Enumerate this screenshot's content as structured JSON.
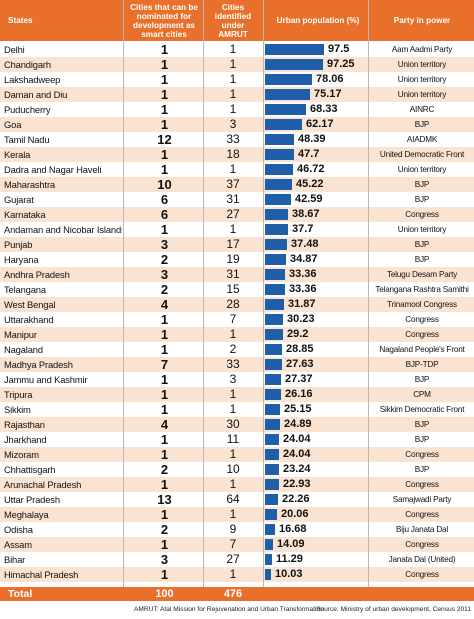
{
  "chart_data": {
    "type": "table",
    "headers": {
      "state": "States",
      "smart_cities": "Cities that can be nominated for development as smart cities",
      "amrut": "Cities identified under AMRUT",
      "urban_pop": "Urban population (%)",
      "party": "Party in power"
    },
    "rows": [
      {
        "state": "Delhi",
        "smart": "1",
        "amrut": "1",
        "urban": 97.5,
        "urban_label": "97.5",
        "party": "Aam Aadmi Party"
      },
      {
        "state": "Chandigarh",
        "smart": "1",
        "amrut": "1",
        "urban": 97.25,
        "urban_label": "97.25",
        "party": "Union territory"
      },
      {
        "state": "Lakshadweep",
        "smart": "1",
        "amrut": "1",
        "urban": 78.06,
        "urban_label": "78.06",
        "party": "Union territory"
      },
      {
        "state": "Daman and Diu",
        "smart": "1",
        "amrut": "1",
        "urban": 75.17,
        "urban_label": "75.17",
        "party": "Union territory"
      },
      {
        "state": "Puducherry",
        "smart": "1",
        "amrut": "1",
        "urban": 68.33,
        "urban_label": "68.33",
        "party": "AINRC"
      },
      {
        "state": "Goa",
        "smart": "1",
        "amrut": "3",
        "urban": 62.17,
        "urban_label": "62.17",
        "party": "BJP"
      },
      {
        "state": "Tamil Nadu",
        "smart": "12",
        "amrut": "33",
        "urban": 48.39,
        "urban_label": "48.39",
        "party": "AIADMK"
      },
      {
        "state": "Kerala",
        "smart": "1",
        "amrut": "18",
        "urban": 47.7,
        "urban_label": "47.7",
        "party": "United Democratic Front"
      },
      {
        "state": "Dadra and Nagar Haveli",
        "smart": "1",
        "amrut": "1",
        "urban": 46.72,
        "urban_label": "46.72",
        "party": "Union territory"
      },
      {
        "state": "Maharashtra",
        "smart": "10",
        "amrut": "37",
        "urban": 45.22,
        "urban_label": "45.22",
        "party": "BJP"
      },
      {
        "state": "Gujarat",
        "smart": "6",
        "amrut": "31",
        "urban": 42.59,
        "urban_label": "42.59",
        "party": "BJP"
      },
      {
        "state": "Karnataka",
        "smart": "6",
        "amrut": "27",
        "urban": 38.67,
        "urban_label": "38.67",
        "party": "Congress"
      },
      {
        "state": "Andaman and Nicobar Islands",
        "smart": "1",
        "amrut": "1",
        "urban": 37.7,
        "urban_label": "37.7",
        "party": "Union territory"
      },
      {
        "state": "Punjab",
        "smart": "3",
        "amrut": "17",
        "urban": 37.48,
        "urban_label": "37.48",
        "party": "BJP"
      },
      {
        "state": "Haryana",
        "smart": "2",
        "amrut": "19",
        "urban": 34.87,
        "urban_label": "34.87",
        "party": "BJP"
      },
      {
        "state": "Andhra Pradesh",
        "smart": "3",
        "amrut": "31",
        "urban": 33.36,
        "urban_label": "33.36",
        "party": "Telugu Desam Party"
      },
      {
        "state": "Telangana",
        "smart": "2",
        "amrut": "15",
        "urban": 33.36,
        "urban_label": "33.36",
        "party": "Telangana Rashtra Samithi"
      },
      {
        "state": "West Bengal",
        "smart": "4",
        "amrut": "28",
        "urban": 31.87,
        "urban_label": "31.87",
        "party": "Trinamool Congress"
      },
      {
        "state": "Uttarakhand",
        "smart": "1",
        "amrut": "7",
        "urban": 30.23,
        "urban_label": "30.23",
        "party": "Congress"
      },
      {
        "state": "Manipur",
        "smart": "1",
        "amrut": "1",
        "urban": 29.2,
        "urban_label": "29.2",
        "party": "Congress"
      },
      {
        "state": "Nagaland",
        "smart": "1",
        "amrut": "2",
        "urban": 28.85,
        "urban_label": "28.85",
        "party": "Nagaland People's Front"
      },
      {
        "state": "Madhya Pradesh",
        "smart": "7",
        "amrut": "33",
        "urban": 27.63,
        "urban_label": "27.63",
        "party": "BJP-TDP"
      },
      {
        "state": "Jammu and Kashmir",
        "smart": "1",
        "amrut": "3",
        "urban": 27.37,
        "urban_label": "27.37",
        "party": "BJP"
      },
      {
        "state": "Tripura",
        "smart": "1",
        "amrut": "1",
        "urban": 26.16,
        "urban_label": "26.16",
        "party": "CPM"
      },
      {
        "state": "Sikkim",
        "smart": "1",
        "amrut": "1",
        "urban": 25.15,
        "urban_label": "25.15",
        "party": "Sikkim Democratic Front"
      },
      {
        "state": "Rajasthan",
        "smart": "4",
        "amrut": "30",
        "urban": 24.89,
        "urban_label": "24.89",
        "party": "BJP"
      },
      {
        "state": "Jharkhand",
        "smart": "1",
        "amrut": "11",
        "urban": 24.04,
        "urban_label": "24.04",
        "party": "BJP"
      },
      {
        "state": "Mizoram",
        "smart": "1",
        "amrut": "1",
        "urban": 24.04,
        "urban_label": "24.04",
        "party": "Congress"
      },
      {
        "state": "Chhattisgarh",
        "smart": "2",
        "amrut": "10",
        "urban": 23.24,
        "urban_label": "23.24",
        "party": "BJP"
      },
      {
        "state": "Arunachal Pradesh",
        "smart": "1",
        "amrut": "1",
        "urban": 22.93,
        "urban_label": "22.93",
        "party": "Congress"
      },
      {
        "state": "Uttar Pradesh",
        "smart": "13",
        "amrut": "64",
        "urban": 22.26,
        "urban_label": "22.26",
        "party": "Samajwadi Party"
      },
      {
        "state": "Meghalaya",
        "smart": "1",
        "amrut": "1",
        "urban": 20.06,
        "urban_label": "20.06",
        "party": "Congress"
      },
      {
        "state": "Odisha",
        "smart": "2",
        "amrut": "9",
        "urban": 16.68,
        "urban_label": "16.68",
        "party": "Biju Janata Dal"
      },
      {
        "state": "Assam",
        "smart": "1",
        "amrut": "7",
        "urban": 14.09,
        "urban_label": "14.09",
        "party": "Congress"
      },
      {
        "state": "Bihar",
        "smart": "3",
        "amrut": "27",
        "urban": 11.29,
        "urban_label": "11.29",
        "party": "Janata Dal (United)"
      },
      {
        "state": "Himachal Pradesh",
        "smart": "1",
        "amrut": "1",
        "urban": 10.03,
        "urban_label": "10.03",
        "party": "Congress"
      }
    ],
    "total": {
      "label": "Total",
      "smart": "100",
      "amrut": "476"
    },
    "footnote_left": "AMRUT: Atal Mission for Rejuvenation and Urban Transformation",
    "footnote_right": "Source: Ministry of urban development, Census 2011",
    "bar_max": 100,
    "colors": {
      "header": "#e8702a",
      "bar": "#1f5ea8",
      "alt_row": "#fbe3d1"
    }
  }
}
